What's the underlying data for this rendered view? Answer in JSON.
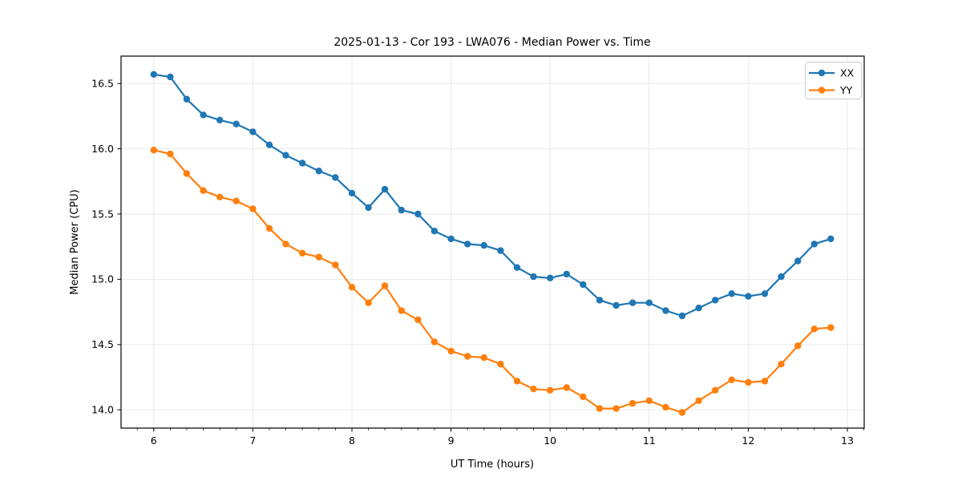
{
  "chart_data": {
    "type": "line",
    "title": "2025-01-13 - Cor 193 - LWA076 - Median Power vs. Time",
    "xlabel": "UT Time (hours)",
    "ylabel": "Median Power (CPU)",
    "xlim": [
      5.67,
      13.17
    ],
    "ylim": [
      13.86,
      16.71
    ],
    "grid": "major-only, light gray",
    "legend_position": "upper right",
    "xticks": {
      "major": [
        6,
        7,
        8,
        9,
        10,
        11,
        12,
        13
      ],
      "labels": [
        "6",
        "7",
        "8",
        "9",
        "10",
        "11",
        "12",
        "13"
      ],
      "minor_interval": 0.1666667
    },
    "yticks": {
      "major": [
        14.0,
        14.5,
        15.0,
        15.5,
        16.0,
        16.5
      ],
      "labels": [
        "14.0",
        "14.5",
        "15.0",
        "15.5",
        "16.0",
        "16.5"
      ]
    },
    "x": [
      6.0,
      6.167,
      6.333,
      6.5,
      6.667,
      6.833,
      7.0,
      7.167,
      7.333,
      7.5,
      7.667,
      7.833,
      8.0,
      8.167,
      8.333,
      8.5,
      8.667,
      8.833,
      9.0,
      9.167,
      9.333,
      9.5,
      9.667,
      9.833,
      10.0,
      10.167,
      10.333,
      10.5,
      10.667,
      10.833,
      11.0,
      11.167,
      11.333,
      11.5,
      11.667,
      11.833,
      12.0,
      12.167,
      12.333,
      12.5,
      12.667,
      12.833
    ],
    "series": [
      {
        "name": "XX",
        "color": "#1f77b4",
        "marker": "circle",
        "values": [
          16.57,
          16.55,
          16.38,
          16.26,
          16.22,
          16.19,
          16.13,
          16.03,
          15.95,
          15.89,
          15.83,
          15.78,
          15.66,
          15.55,
          15.69,
          15.53,
          15.5,
          15.37,
          15.31,
          15.27,
          15.26,
          15.22,
          15.09,
          15.02,
          15.01,
          15.04,
          14.96,
          14.84,
          14.8,
          14.82,
          14.82,
          14.76,
          14.72,
          14.78,
          14.84,
          14.89,
          14.87,
          14.89,
          15.02,
          15.14,
          15.27,
          15.31
        ]
      },
      {
        "name": "YY",
        "color": "#ff7f0e",
        "marker": "circle",
        "values": [
          15.99,
          15.96,
          15.81,
          15.68,
          15.63,
          15.6,
          15.54,
          15.39,
          15.27,
          15.2,
          15.17,
          15.11,
          14.94,
          14.82,
          14.95,
          14.76,
          14.69,
          14.52,
          14.45,
          14.41,
          14.4,
          14.35,
          14.22,
          14.16,
          14.15,
          14.17,
          14.1,
          14.01,
          14.01,
          14.05,
          14.07,
          14.02,
          13.98,
          14.07,
          14.15,
          14.23,
          14.21,
          14.22,
          14.35,
          14.49,
          14.62,
          14.63
        ]
      }
    ]
  },
  "style": {
    "grid_color": "#e7e7e7",
    "spine_color": "#000000",
    "background": "#ffffff",
    "legend_border": "#cccccc"
  }
}
